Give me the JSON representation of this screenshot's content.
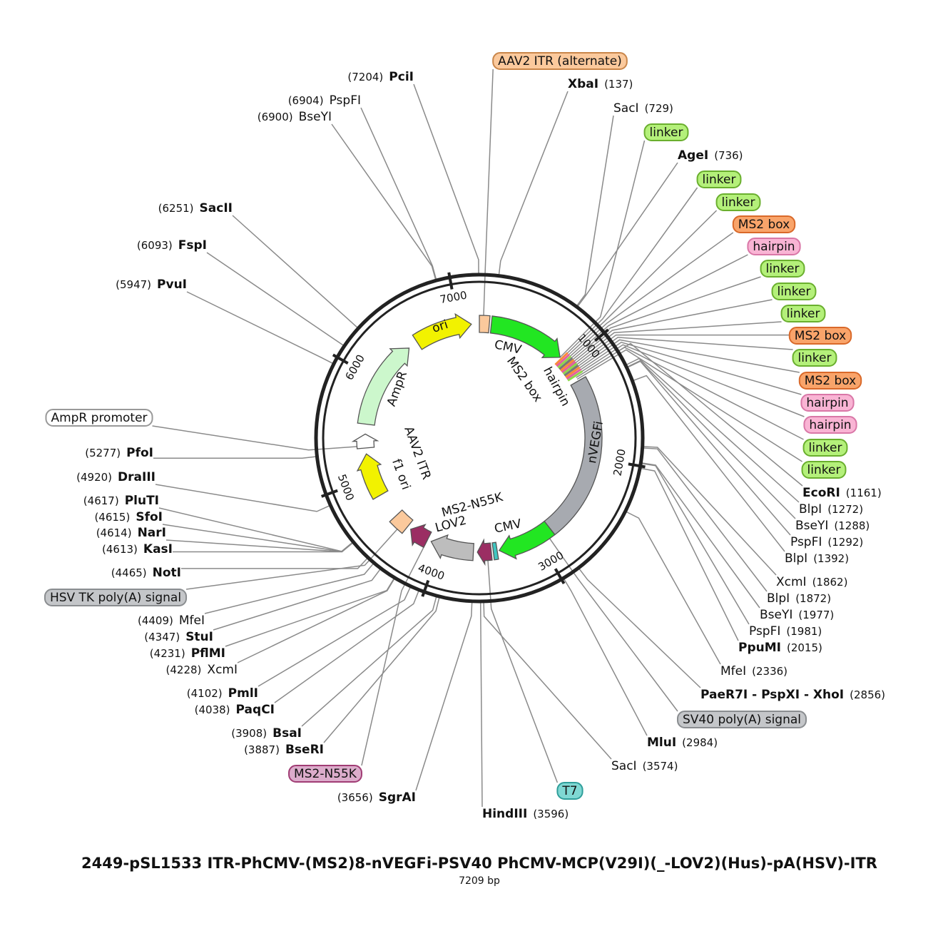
{
  "title": "2449-pSL1533 ITR-PhCMV-(MS2)8-nVEGFi-PSV40 PhCMV-MCP(V29I)(_-LOV2)(Hus)-pA(HSV)-ITR",
  "subtitle": "7209 bp",
  "length": 7209,
  "ticks": [
    1000,
    2000,
    3000,
    4000,
    5000,
    6000,
    7000
  ],
  "features": [
    {
      "name": "ori",
      "color": "#f2f200"
    },
    {
      "name": "CMV",
      "color": "#22e622"
    },
    {
      "name": "MS2 box",
      "color": "#f98a3a"
    },
    {
      "name": "hairpin",
      "color": "#e88ac0"
    },
    {
      "name": "nVEGFi",
      "color": "#a7aab0"
    },
    {
      "name": "CMV",
      "color": "#22e622"
    },
    {
      "name": "MS2-N55K",
      "color": "#9b2e63"
    },
    {
      "name": "LOV2",
      "color": "#bdbdbd"
    },
    {
      "name": "AAV2 ITR",
      "color": "#fbc99c"
    },
    {
      "name": "f1 ori",
      "color": "#f2f200"
    },
    {
      "name": "AmpR",
      "color": "#ccf7cc"
    }
  ],
  "sites": [
    {
      "name": "PciI",
      "position": "(7204)",
      "bold": true
    },
    {
      "name": "PspFI",
      "position": "(6904)",
      "bold": false
    },
    {
      "name": "BseYI",
      "position": "(6900)",
      "bold": false
    },
    {
      "name": "SacII",
      "position": "(6251)",
      "bold": true
    },
    {
      "name": "FspI",
      "position": "(6093)",
      "bold": true
    },
    {
      "name": "PvuI",
      "position": "(5947)",
      "bold": true
    },
    {
      "name": "PfoI",
      "position": "(5277)",
      "bold": true
    },
    {
      "name": "DraIII",
      "position": "(4920)",
      "bold": true
    },
    {
      "name": "PluTI",
      "position": "(4617)",
      "bold": true
    },
    {
      "name": "SfoI",
      "position": "(4615)",
      "bold": true
    },
    {
      "name": "NarI",
      "position": "(4614)",
      "bold": true
    },
    {
      "name": "KasI",
      "position": "(4613)",
      "bold": true
    },
    {
      "name": "NotI",
      "position": "(4465)",
      "bold": true
    },
    {
      "name": "MfeI",
      "position": "(4409)",
      "bold": false
    },
    {
      "name": "StuI",
      "position": "(4347)",
      "bold": true
    },
    {
      "name": "PflMI",
      "position": "(4231)",
      "bold": true
    },
    {
      "name": "XcmI",
      "position": "(4228)",
      "bold": false
    },
    {
      "name": "PmlI",
      "position": "(4102)",
      "bold": true
    },
    {
      "name": "PaqCI",
      "position": "(4038)",
      "bold": true
    },
    {
      "name": "BsaI",
      "position": "(3908)",
      "bold": true
    },
    {
      "name": "BseRI",
      "position": "(3887)",
      "bold": true
    },
    {
      "name": "SgrAI",
      "position": "(3656)",
      "bold": true
    },
    {
      "name": "HindIII",
      "position": "(3596)",
      "bold": true
    },
    {
      "name": "XbaI",
      "position": "(137)",
      "bold": true
    },
    {
      "name": "SacI",
      "position": "(729)",
      "bold": false
    },
    {
      "name": "AgeI",
      "position": "(736)",
      "bold": true
    },
    {
      "name": "EcoRI",
      "position": "(1161)",
      "bold": true
    },
    {
      "name": "BlpI",
      "position": "(1272)",
      "bold": false
    },
    {
      "name": "BseYI",
      "position": "(1288)",
      "bold": false
    },
    {
      "name": "PspFI",
      "position": "(1292)",
      "bold": false
    },
    {
      "name": "BlpI",
      "position": "(1392)",
      "bold": false
    },
    {
      "name": "XcmI",
      "position": "(1862)",
      "bold": false
    },
    {
      "name": "BlpI",
      "position": "(1872)",
      "bold": false
    },
    {
      "name": "BseYI",
      "position": "(1977)",
      "bold": false
    },
    {
      "name": "PspFI",
      "position": "(1981)",
      "bold": false
    },
    {
      "name": "PpuMI",
      "position": "(2015)",
      "bold": true
    },
    {
      "name": "MfeI",
      "position": "(2336)",
      "bold": false
    },
    {
      "name": "PaeR7I - PspXI - XhoI",
      "position": "(2856)",
      "bold": true
    },
    {
      "name": "MluI",
      "position": "(2984)",
      "bold": true
    },
    {
      "name": "SacI",
      "position": "(3574)",
      "bold": false
    }
  ],
  "callouts": [
    {
      "label": "AAV2 ITR (alternate)",
      "color": "#fbc99c",
      "border": "#c9864a"
    },
    {
      "label": "linker",
      "color": "#b4f07a",
      "border": "#6aaf2e"
    },
    {
      "label": "linker",
      "color": "#b4f07a",
      "border": "#6aaf2e"
    },
    {
      "label": "linker",
      "color": "#b4f07a",
      "border": "#6aaf2e"
    },
    {
      "label": "MS2 box",
      "color": "#f9a46a",
      "border": "#d9692a"
    },
    {
      "label": "hairpin",
      "color": "#f9b4d4",
      "border": "#d977a7"
    },
    {
      "label": "linker",
      "color": "#b4f07a",
      "border": "#6aaf2e"
    },
    {
      "label": "linker",
      "color": "#b4f07a",
      "border": "#6aaf2e"
    },
    {
      "label": "linker",
      "color": "#b4f07a",
      "border": "#6aaf2e"
    },
    {
      "label": "MS2 box",
      "color": "#f9a46a",
      "border": "#d9692a"
    },
    {
      "label": "linker",
      "color": "#b4f07a",
      "border": "#6aaf2e"
    },
    {
      "label": "MS2 box",
      "color": "#f9a46a",
      "border": "#d9692a"
    },
    {
      "label": "hairpin",
      "color": "#f9b4d4",
      "border": "#d977a7"
    },
    {
      "label": "hairpin",
      "color": "#f9b4d4",
      "border": "#d977a7"
    },
    {
      "label": "linker",
      "color": "#b4f07a",
      "border": "#6aaf2e"
    },
    {
      "label": "linker",
      "color": "#b4f07a",
      "border": "#6aaf2e"
    },
    {
      "label": "AmpR promoter",
      "color": "#ffffff",
      "border": "#999999"
    },
    {
      "label": "HSV TK poly(A) signal",
      "color": "#c4c6c9",
      "border": "#8a8d90"
    },
    {
      "label": "SV40 poly(A) signal",
      "color": "#c4c6c9",
      "border": "#8a8d90"
    },
    {
      "label": "MS2-N55K",
      "color": "#dcaccb",
      "border": "#a03c74"
    },
    {
      "label": "T7",
      "color": "#7fd8d3",
      "border": "#2f9e9a"
    }
  ]
}
